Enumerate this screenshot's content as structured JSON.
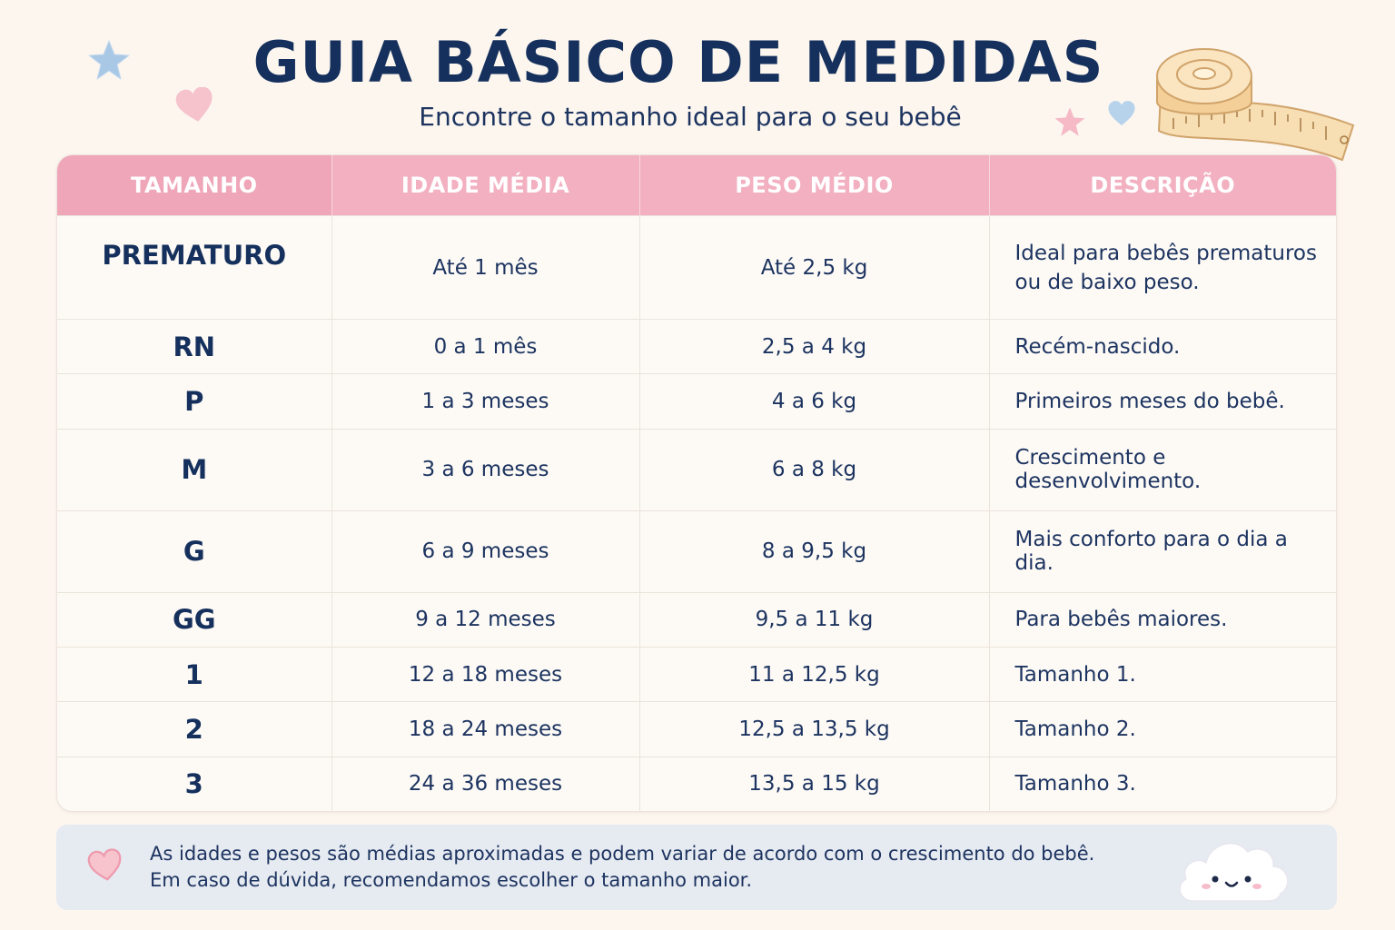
{
  "header": {
    "title": "GUIA BÁSICO DE MEDIDAS",
    "subtitle": "Encontre o tamanho ideal para o seu bebê"
  },
  "table": {
    "columns": [
      "TAMANHO",
      "IDADE MÉDIA",
      "PESO MÉDIO",
      "DESCRIÇÃO"
    ],
    "rows": [
      {
        "size": "PREMATURO",
        "age": "Até 1 mês",
        "weight": "Até 2,5 kg",
        "desc": "Ideal para bebês prematuros ou de baixo peso."
      },
      {
        "size": "RN",
        "age": "0 a 1 mês",
        "weight": "2,5 a 4 kg",
        "desc": "Recém-nascido."
      },
      {
        "size": "P",
        "age": "1 a 3 meses",
        "weight": "4 a 6 kg",
        "desc": "Primeiros meses do bebê."
      },
      {
        "size": "M",
        "age": "3 a 6 meses",
        "weight": "6 a 8 kg",
        "desc": "Crescimento e desenvolvimento."
      },
      {
        "size": "G",
        "age": "6 a 9 meses",
        "weight": "8 a 9,5 kg",
        "desc": "Mais conforto para o dia a dia."
      },
      {
        "size": "GG",
        "age": "9 a 12 meses",
        "weight": "9,5 a 11 kg",
        "desc": "Para bebês maiores."
      },
      {
        "size": "1",
        "age": "12 a 18 meses",
        "weight": "11 a 12,5 kg",
        "desc": "Tamanho 1."
      },
      {
        "size": "2",
        "age": "18 a 24 meses",
        "weight": "12,5 a 13,5 kg",
        "desc": "Tamanho 2."
      },
      {
        "size": "3",
        "age": "24 a 36 meses",
        "weight": "13,5 a 15 kg",
        "desc": "Tamanho 3."
      }
    ]
  },
  "note": {
    "line1": "As idades e pesos são médias aproximadas e podem variar de acordo com o crescimento do bebê.",
    "line2": "Em caso de dúvida, recomendamos escolher o tamanho maior."
  },
  "icons": {
    "decorations": [
      "star-icon",
      "heart-icon",
      "measuring-tape-icon",
      "cloud-icon"
    ],
    "colors": {
      "pink": "#f2b0c1",
      "navy": "#15305c",
      "blue": "#a9c8e6",
      "tape": "#f6dcb0"
    }
  }
}
